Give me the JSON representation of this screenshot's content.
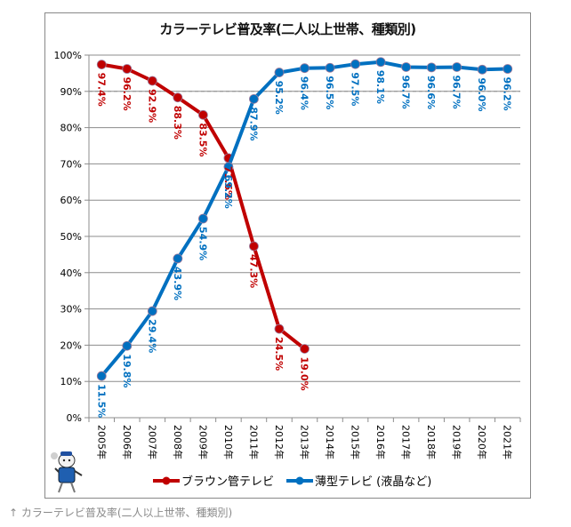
{
  "caption": "↑ カラーテレビ普及率(二人以上世帯、種類別)",
  "chart_data": {
    "type": "line",
    "title": "カラーテレビ普及率(二人以上世帯、種類別)",
    "xlabel": "",
    "ylabel": "",
    "ylim": [
      0,
      100
    ],
    "yticks": [
      "0%",
      "10%",
      "20%",
      "30%",
      "40%",
      "50%",
      "60%",
      "70%",
      "80%",
      "90%",
      "100%"
    ],
    "grid": true,
    "reference_line": 90,
    "legend_position": "bottom",
    "categories": [
      "2005年",
      "2006年",
      "2007年",
      "2008年",
      "2009年",
      "2010年",
      "2011年",
      "2012年",
      "2013年",
      "2014年",
      "2015年",
      "2016年",
      "2017年",
      "2018年",
      "2019年",
      "2020年",
      "2021年"
    ],
    "series": [
      {
        "name": "ブラウン管テレビ",
        "color": "#c00000",
        "values": [
          97.4,
          96.2,
          92.9,
          88.3,
          83.5,
          71.6,
          47.3,
          24.5,
          19.0,
          null,
          null,
          null,
          null,
          null,
          null,
          null,
          null
        ],
        "labels": [
          "97.4%",
          "96.2%",
          "92.9%",
          "88.3%",
          "83.5%",
          "71.6%",
          "47.3%",
          "24.5%",
          "19.0%",
          null,
          null,
          null,
          null,
          null,
          null,
          null,
          null
        ]
      },
      {
        "name": "薄型テレビ (液晶など)",
        "color": "#0070c0",
        "values": [
          11.5,
          19.8,
          29.4,
          43.9,
          54.9,
          69.2,
          87.9,
          95.2,
          96.4,
          96.5,
          97.5,
          98.1,
          96.7,
          96.6,
          96.7,
          96.0,
          96.2
        ],
        "labels": [
          "11.5%",
          "19.8%",
          "29.4%",
          "43.9%",
          "54.9%",
          "69.2%",
          "87.9%",
          "95.2%",
          "96.4%",
          "96.5%",
          "97.5%",
          "98.1%",
          "96.7%",
          "96.6%",
          "96.7%",
          "96.0%",
          "96.2%"
        ]
      }
    ]
  }
}
